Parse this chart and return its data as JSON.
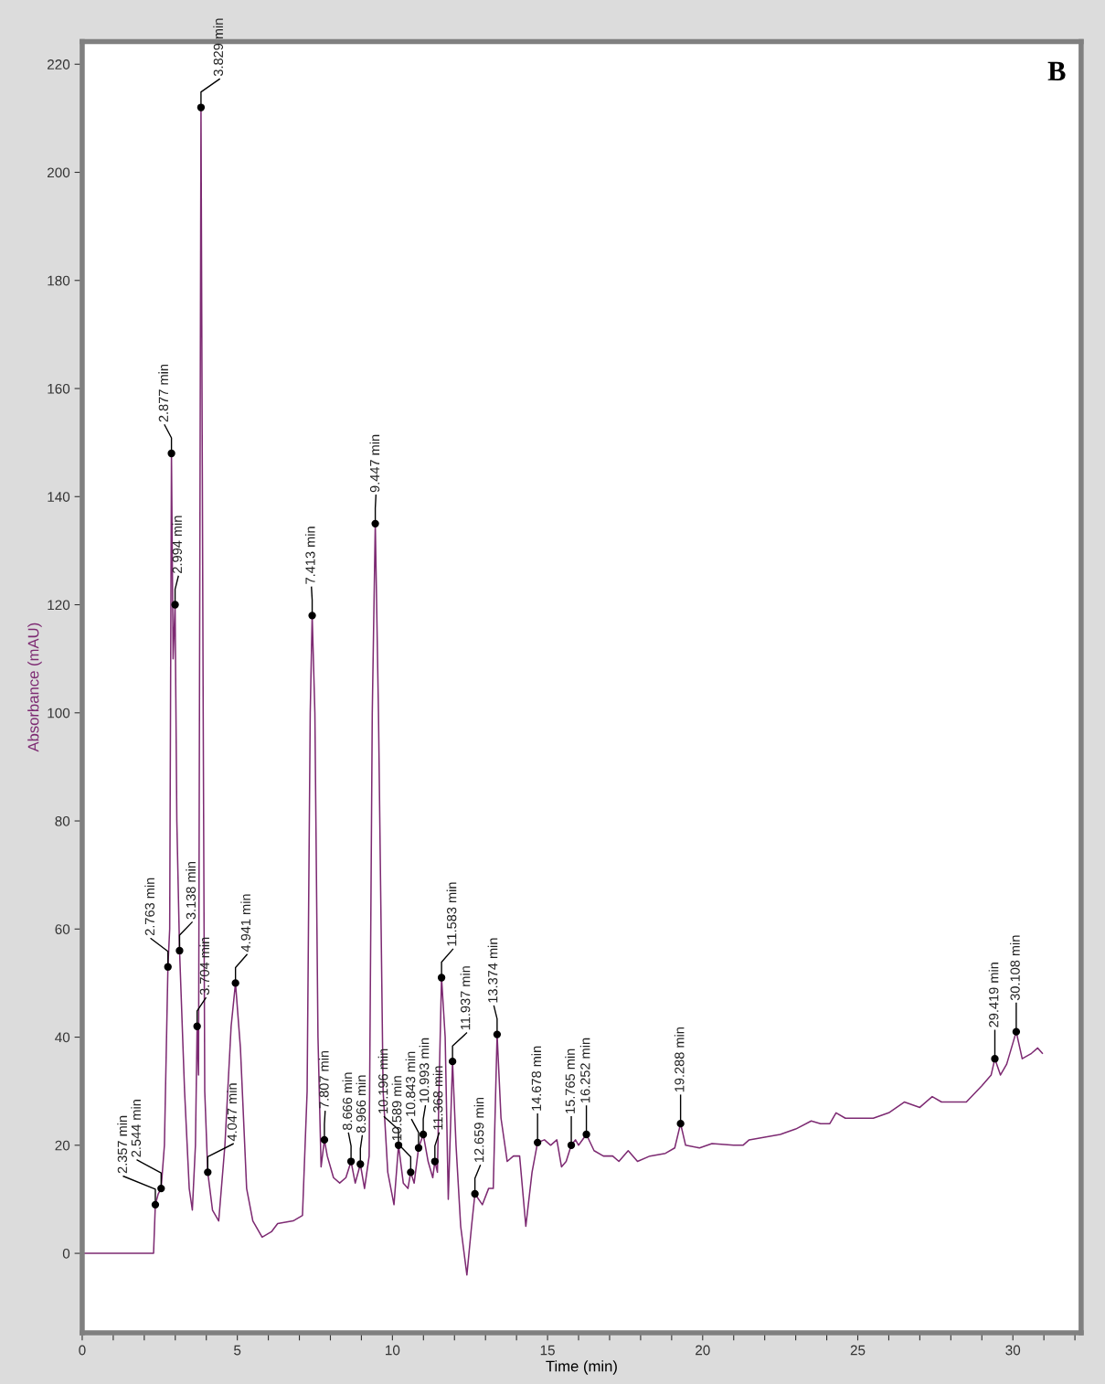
{
  "chart_data": {
    "type": "line",
    "xlabel": "Time (min)",
    "ylabel": "Absorbance (mAU)",
    "color": "#7d2a72",
    "marker": "none",
    "line_style": "solid",
    "grid": false,
    "legend": false,
    "xlim": [
      0,
      32.2
    ],
    "ylim": [
      -14.7,
      224.2
    ],
    "xticks": [
      0,
      {
        "value": 1,
        "label": null
      },
      {
        "value": 2,
        "label": null
      },
      {
        "value": 3,
        "label": null
      },
      {
        "value": 4,
        "label": null
      },
      5,
      {
        "value": 6,
        "label": null
      },
      {
        "value": 7,
        "label": null
      },
      {
        "value": 8,
        "label": null
      },
      {
        "value": 9,
        "label": null
      },
      10,
      {
        "value": 11,
        "label": null
      },
      {
        "value": 12,
        "label": null
      },
      {
        "value": 13,
        "label": null
      },
      {
        "value": 14,
        "label": null
      },
      15,
      {
        "value": 16,
        "label": null
      },
      {
        "value": 17,
        "label": null
      },
      {
        "value": 18,
        "label": null
      },
      {
        "value": 19,
        "label": null
      },
      20,
      {
        "value": 21,
        "label": null
      },
      {
        "value": 22,
        "label": null
      },
      {
        "value": 23,
        "label": null
      },
      {
        "value": 24,
        "label": null
      },
      25,
      {
        "value": 26,
        "label": null
      },
      {
        "value": 27,
        "label": null
      },
      {
        "value": 28,
        "label": null
      },
      {
        "value": 29,
        "label": null
      },
      30,
      {
        "value": 31,
        "label": null
      },
      {
        "value": 32,
        "label": null
      }
    ],
    "yticks": [
      0,
      20,
      40,
      60,
      80,
      100,
      120,
      140,
      160,
      180,
      200,
      220
    ],
    "x": [
      0,
      2.3,
      2.357,
      2.45,
      2.544,
      2.65,
      2.763,
      2.82,
      2.877,
      2.93,
      2.994,
      3.05,
      3.138,
      3.3,
      3.45,
      3.55,
      3.65,
      3.704,
      3.75,
      3.829,
      3.9,
      3.95,
      4.047,
      4.2,
      4.4,
      4.6,
      4.8,
      4.941,
      5.1,
      5.3,
      5.5,
      5.8,
      6.1,
      6.3,
      6.8,
      7.1,
      7.25,
      7.35,
      7.413,
      7.5,
      7.6,
      7.7,
      7.807,
      7.9,
      8.1,
      8.3,
      8.5,
      8.666,
      8.8,
      8.966,
      9.1,
      9.25,
      9.35,
      9.447,
      9.55,
      9.7,
      9.85,
      10.05,
      10.196,
      10.35,
      10.5,
      10.589,
      10.7,
      10.843,
      10.993,
      11.15,
      11.3,
      11.368,
      11.45,
      11.5,
      11.583,
      11.7,
      11.8,
      11.937,
      12.05,
      12.2,
      12.4,
      12.55,
      12.659,
      12.9,
      13.1,
      13.25,
      13.374,
      13.5,
      13.7,
      13.9,
      14.1,
      14.3,
      14.5,
      14.678,
      14.9,
      15.1,
      15.3,
      15.45,
      15.6,
      15.765,
      15.9,
      16.0,
      16.252,
      16.5,
      16.8,
      17.1,
      17.3,
      17.6,
      17.9,
      18.3,
      18.8,
      19.1,
      19.288,
      19.45,
      19.9,
      20.3,
      21,
      21.3,
      21.5,
      22,
      22.5,
      23,
      23.5,
      23.8,
      24.1,
      24.3,
      24.6,
      25.5,
      26,
      26.5,
      27,
      27.4,
      27.7,
      28.5,
      29,
      29.3,
      29.419,
      29.6,
      29.8,
      30.108,
      30.3,
      30.6,
      30.8,
      30.95
    ],
    "values": [
      0,
      0,
      9,
      11,
      12,
      20,
      53,
      60,
      148,
      110,
      120,
      80,
      56,
      30,
      12,
      8,
      20,
      42,
      33,
      212,
      100,
      30,
      15,
      8,
      6,
      20,
      42,
      50,
      38,
      12,
      6,
      3,
      4,
      5.5,
      6,
      7,
      30,
      100,
      118,
      100,
      40,
      16,
      21,
      18,
      14,
      13,
      14,
      17,
      13,
      16.5,
      12,
      18,
      100,
      135,
      100,
      30,
      15,
      9,
      20,
      13,
      12,
      15,
      13,
      19.5,
      22,
      17,
      14,
      17,
      15,
      30,
      51,
      40,
      10,
      35.5,
      20,
      5,
      -4,
      5,
      11,
      9,
      12,
      12,
      40.5,
      25,
      17,
      18,
      18,
      5,
      15,
      20.5,
      21,
      20,
      21,
      16,
      17,
      20,
      21,
      20,
      22,
      19,
      18,
      18,
      17,
      19,
      17,
      18,
      18.5,
      19.5,
      24,
      20,
      19.5,
      20.3,
      20,
      20,
      21,
      21.5,
      22,
      23,
      24.5,
      24,
      24,
      26,
      25,
      25,
      26,
      28,
      27,
      29,
      28,
      28,
      31,
      33,
      36,
      33,
      35,
      41,
      36,
      37,
      38,
      37
    ],
    "annotations": [
      "B",
      {
        "text": "2.357 min",
        "x": 2.357,
        "y": 9
      },
      {
        "text": "2.544 min",
        "x": 2.544,
        "y": 12
      },
      {
        "text": "2.763 min",
        "x": 2.763,
        "y": 53
      },
      {
        "text": "2.877 min",
        "x": 2.877,
        "y": 148
      },
      {
        "text": "2.994 min",
        "x": 2.994,
        "y": 120
      },
      {
        "text": "3.138 min",
        "x": 3.138,
        "y": 56
      },
      {
        "text": "3.704 min",
        "x": 3.704,
        "y": 42
      },
      {
        "text": "3.829 min",
        "x": 3.829,
        "y": 212
      },
      {
        "text": "4.047 min",
        "x": 4.047,
        "y": 15
      },
      {
        "text": "4.941 min",
        "x": 4.941,
        "y": 50
      },
      {
        "text": "7.413 min",
        "x": 7.413,
        "y": 118
      },
      {
        "text": "7.807 min",
        "x": 7.807,
        "y": 21
      },
      {
        "text": "8.666 min",
        "x": 8.666,
        "y": 17
      },
      {
        "text": "8.966 min",
        "x": 8.966,
        "y": 16.5
      },
      {
        "text": "9.447 min",
        "x": 9.447,
        "y": 135
      },
      {
        "text": "10.196 min",
        "x": 10.196,
        "y": 20
      },
      {
        "text": "10.589 min",
        "x": 10.589,
        "y": 15
      },
      {
        "text": "10.843 min",
        "x": 10.843,
        "y": 19.5
      },
      {
        "text": "10.993 min",
        "x": 10.993,
        "y": 22
      },
      {
        "text": "11.368 min",
        "x": 11.368,
        "y": 17
      },
      {
        "text": "11.583 min",
        "x": 11.583,
        "y": 51
      },
      {
        "text": "11.937 min",
        "x": 11.937,
        "y": 35.5
      },
      {
        "text": "12.659 min",
        "x": 12.659,
        "y": 11
      },
      {
        "text": "13.374 min",
        "x": 13.374,
        "y": 40.5
      },
      {
        "text": "14.678 min",
        "x": 14.678,
        "y": 20.5
      },
      {
        "text": "15.765 min",
        "x": 15.765,
        "y": 20
      },
      {
        "text": "16.252 min",
        "x": 16.252,
        "y": 22
      },
      {
        "text": "19.288 min",
        "x": 19.288,
        "y": 24
      },
      {
        "text": "29.419 min",
        "x": 29.419,
        "y": 36
      },
      {
        "text": "30.108 min",
        "x": 30.108,
        "y": 41
      }
    ]
  }
}
